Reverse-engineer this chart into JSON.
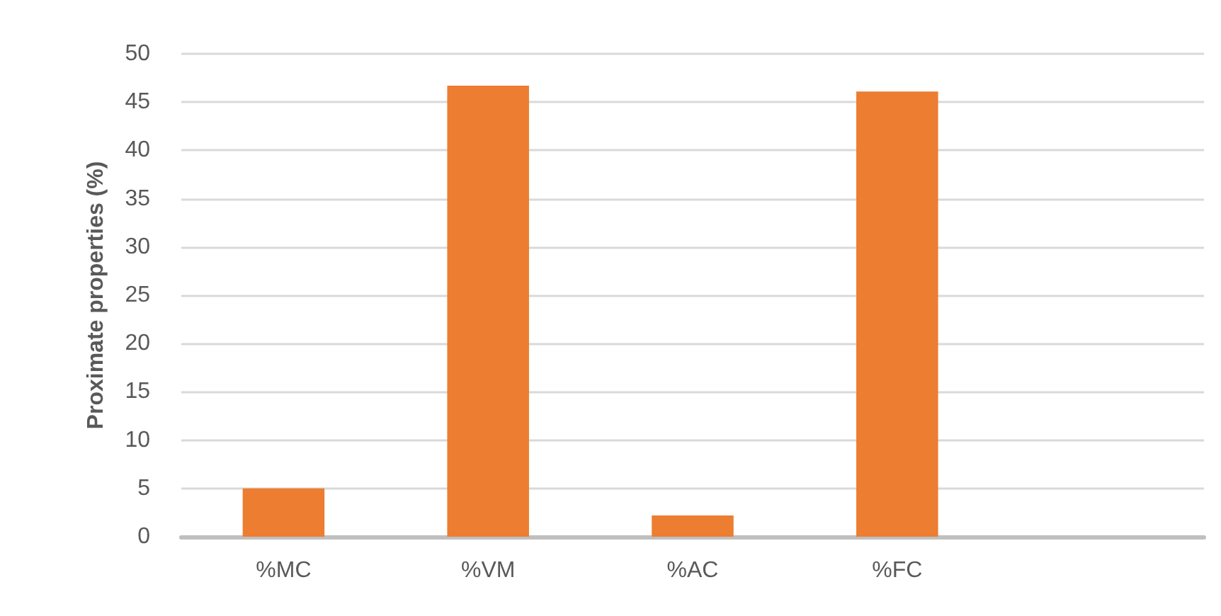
{
  "chart_data": {
    "type": "bar",
    "ylabel": "Proximate properties (%)",
    "categories": [
      "%MC",
      "%VM",
      "%AC",
      "%FC",
      null
    ],
    "values": [
      5.0,
      46.7,
      2.2,
      46.1,
      null
    ],
    "color": "#ed7d31",
    "ylim": [
      0,
      50
    ],
    "yticks": [
      0,
      5,
      10,
      15,
      20,
      25,
      30,
      35,
      40,
      45,
      50
    ],
    "grid": "y"
  }
}
